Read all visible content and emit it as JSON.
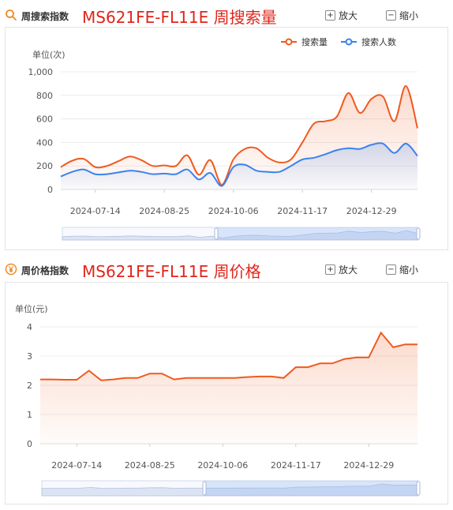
{
  "panels": [
    {
      "label": "周搜索指数",
      "title": "MS621FE-FL11E 周搜索量",
      "icon": "search-icon",
      "zoom_in_label": "放大",
      "zoom_out_label": "缩小"
    },
    {
      "label": "周价格指数",
      "title": "MS621FE-FL11E 周价格",
      "icon": "yen-icon",
      "zoom_in_label": "放大",
      "zoom_out_label": "缩小"
    }
  ],
  "colors": {
    "series_orange": "#f05a1e",
    "series_blue": "#3b82f0",
    "title_red": "#e0251b"
  },
  "chart_data": [
    {
      "type": "area",
      "ylabel": "单位(次)",
      "ylim": [
        0,
        1000
      ],
      "yticks": [
        "0",
        "200",
        "400",
        "600",
        "800",
        "1,000"
      ],
      "xticks": [
        "2024-07-14",
        "2024-08-25",
        "2024-10-06",
        "2024-11-17",
        "2024-12-29"
      ],
      "xrange": [
        "2024-06-23",
        "2025-01-26"
      ],
      "legend_position": "top-right",
      "grid": true,
      "series": [
        {
          "name": "搜索量",
          "color": "#f05a1e",
          "x": [
            "2024-06-23",
            "2024-06-30",
            "2024-07-07",
            "2024-07-14",
            "2024-07-21",
            "2024-07-28",
            "2024-08-04",
            "2024-08-11",
            "2024-08-18",
            "2024-08-25",
            "2024-09-01",
            "2024-09-08",
            "2024-09-15",
            "2024-09-22",
            "2024-09-29",
            "2024-10-06",
            "2024-10-13",
            "2024-10-20",
            "2024-10-27",
            "2024-11-03",
            "2024-11-10",
            "2024-11-17",
            "2024-11-24",
            "2024-12-01",
            "2024-12-08",
            "2024-12-15",
            "2024-12-22",
            "2024-12-29",
            "2025-01-05",
            "2025-01-12",
            "2025-01-19",
            "2025-01-26"
          ],
          "values": [
            190,
            245,
            260,
            190,
            200,
            240,
            280,
            250,
            200,
            205,
            200,
            290,
            125,
            250,
            40,
            255,
            345,
            350,
            270,
            230,
            255,
            400,
            560,
            580,
            620,
            820,
            650,
            770,
            790,
            580,
            880,
            520
          ]
        },
        {
          "name": "搜索人数",
          "color": "#3b82f0",
          "x": [
            "2024-06-23",
            "2024-06-30",
            "2024-07-07",
            "2024-07-14",
            "2024-07-21",
            "2024-07-28",
            "2024-08-04",
            "2024-08-11",
            "2024-08-18",
            "2024-08-25",
            "2024-09-01",
            "2024-09-08",
            "2024-09-15",
            "2024-09-22",
            "2024-09-29",
            "2024-10-06",
            "2024-10-13",
            "2024-10-20",
            "2024-10-27",
            "2024-11-03",
            "2024-11-10",
            "2024-11-17",
            "2024-11-24",
            "2024-12-01",
            "2024-12-08",
            "2024-12-15",
            "2024-12-22",
            "2024-12-29",
            "2025-01-05",
            "2025-01-12",
            "2025-01-19",
            "2025-01-26"
          ],
          "values": [
            110,
            150,
            170,
            130,
            130,
            145,
            160,
            150,
            130,
            135,
            130,
            170,
            85,
            140,
            30,
            190,
            210,
            160,
            150,
            150,
            200,
            255,
            270,
            300,
            335,
            350,
            345,
            380,
            390,
            310,
            390,
            285
          ]
        }
      ]
    },
    {
      "type": "area",
      "ylabel": "单位(元)",
      "ylim": [
        0,
        4
      ],
      "yticks": [
        "0",
        "1",
        "2",
        "3",
        "4"
      ],
      "xticks": [
        "2024-07-14",
        "2024-08-25",
        "2024-10-06",
        "2024-11-17",
        "2024-12-29"
      ],
      "xrange": [
        "2024-06-23",
        "2025-01-26"
      ],
      "grid": true,
      "series": [
        {
          "color": "#f05a1e",
          "x": [
            "2024-06-23",
            "2024-06-30",
            "2024-07-07",
            "2024-07-14",
            "2024-07-21",
            "2024-07-28",
            "2024-08-04",
            "2024-08-11",
            "2024-08-18",
            "2024-08-25",
            "2024-09-01",
            "2024-09-08",
            "2024-09-15",
            "2024-09-22",
            "2024-09-29",
            "2024-10-06",
            "2024-10-13",
            "2024-10-20",
            "2024-10-27",
            "2024-11-03",
            "2024-11-10",
            "2024-11-17",
            "2024-11-24",
            "2024-12-01",
            "2024-12-08",
            "2024-12-15",
            "2024-12-22",
            "2024-12-29",
            "2025-01-05",
            "2025-01-12",
            "2025-01-19",
            "2025-01-26"
          ],
          "values": [
            2.2,
            2.2,
            2.19,
            2.19,
            2.5,
            2.17,
            2.2,
            2.25,
            2.25,
            2.4,
            2.4,
            2.2,
            2.25,
            2.25,
            2.25,
            2.25,
            2.25,
            2.28,
            2.3,
            2.3,
            2.25,
            2.62,
            2.62,
            2.75,
            2.75,
            2.9,
            2.95,
            2.95,
            3.8,
            3.3,
            3.4,
            3.4
          ]
        }
      ]
    }
  ]
}
